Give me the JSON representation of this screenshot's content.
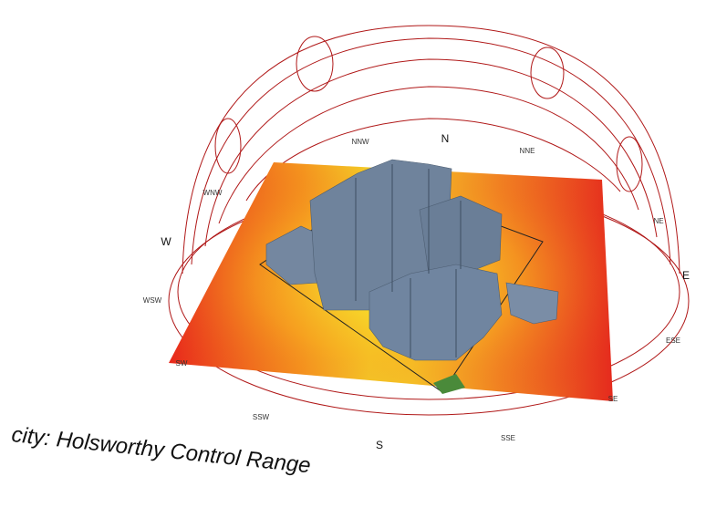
{
  "compass": {
    "N": "N",
    "NNW": "NNW",
    "NNE": "NNE",
    "NE": "NE",
    "WNW": "WNW",
    "W": "W",
    "WSW": "WSW",
    "E": "E",
    "ESE": "ESE",
    "SW": "SW",
    "SSW": "SSW",
    "S": "S",
    "SSE": "SSE",
    "SE": "SE"
  },
  "caption": "city: Holsworthy Control Range"
}
